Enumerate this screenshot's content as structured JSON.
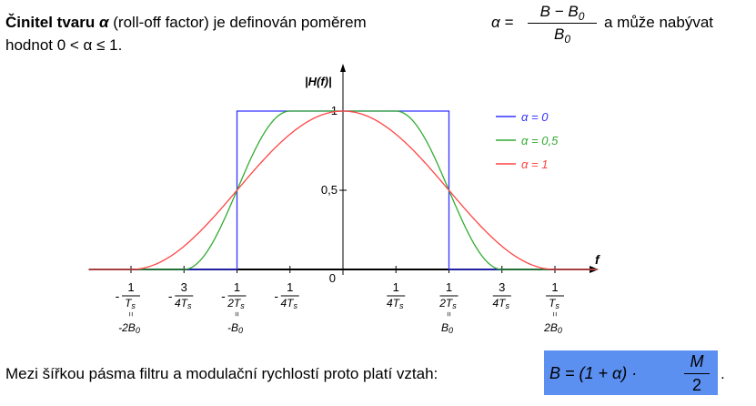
{
  "intro": {
    "bold": "Činitel tvaru",
    "alpha": "α",
    "mid": "(roll-off factor) je definován poměrem",
    "formula_lhs": "α =",
    "formula_num": "B − B",
    "formula_num_sub": "0",
    "formula_den": "B",
    "formula_den_sub": "0",
    "tail": "a může nabývat",
    "line2": "hodnot 0 < α ≤ 1."
  },
  "outro": {
    "text": "Mezi šířkou pásma filtru a modulační rychlostí proto platí vztah:",
    "formula_lhs": "B = (1 + α) ·",
    "formula_num": "M",
    "formula_den": "2",
    "period": "."
  },
  "colors": {
    "alpha0": "#3333ff",
    "alpha05": "#33aa33",
    "alpha1": "#ff4444",
    "highlight": "#5b8ff0"
  },
  "chart_data": {
    "type": "line",
    "ylabel": "|H(f)|",
    "xlabel": "f",
    "x_unit_note": "x in units of 1/Ts",
    "xlim": [
      -1.25,
      1.25
    ],
    "ylim": [
      0,
      1
    ],
    "x_ticks": [
      {
        "x": -1.0,
        "num": "1",
        "den": "T",
        "den_sub": "s",
        "neg": true,
        "alt": "-2B",
        "alt_sub": "0"
      },
      {
        "x": -0.75,
        "num": "3",
        "den": "4T",
        "den_sub": "s",
        "neg": true,
        "alt": "",
        "alt_sub": ""
      },
      {
        "x": -0.5,
        "num": "1",
        "den": "2T",
        "den_sub": "s",
        "neg": true,
        "alt": "-B",
        "alt_sub": "0"
      },
      {
        "x": -0.25,
        "num": "1",
        "den": "4T",
        "den_sub": "s",
        "neg": true,
        "alt": "",
        "alt_sub": ""
      },
      {
        "x": 0.25,
        "num": "1",
        "den": "4T",
        "den_sub": "s",
        "neg": false,
        "alt": "",
        "alt_sub": ""
      },
      {
        "x": 0.5,
        "num": "1",
        "den": "2T",
        "den_sub": "s",
        "neg": false,
        "alt": "B",
        "alt_sub": "0"
      },
      {
        "x": 0.75,
        "num": "3",
        "den": "4T",
        "den_sub": "s",
        "neg": false,
        "alt": "",
        "alt_sub": ""
      },
      {
        "x": 1.0,
        "num": "1",
        "den": "T",
        "den_sub": "s",
        "neg": false,
        "alt": "2B",
        "alt_sub": "0"
      }
    ],
    "origin_label": "0",
    "y_ticks": [
      {
        "y": 0.5,
        "label": "0,5"
      },
      {
        "y": 1.0,
        "label": "1"
      }
    ],
    "series": [
      {
        "name": "α = 0",
        "alpha": 0,
        "color": "#3333ff"
      },
      {
        "name": "α = 0,5",
        "alpha": 0.5,
        "color": "#33aa33"
      },
      {
        "name": "α = 1",
        "alpha": 1,
        "color": "#ff4444"
      }
    ],
    "legend_position": "top-right",
    "grid": false
  }
}
